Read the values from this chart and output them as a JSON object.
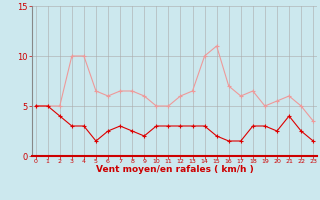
{
  "hours": [
    0,
    1,
    2,
    3,
    4,
    5,
    6,
    7,
    8,
    9,
    10,
    11,
    12,
    13,
    14,
    15,
    16,
    17,
    18,
    19,
    20,
    21,
    22,
    23
  ],
  "wind_avg": [
    5,
    5,
    4,
    3,
    3,
    1.5,
    2.5,
    3,
    2.5,
    2,
    3,
    3,
    3,
    3,
    3,
    2,
    1.5,
    1.5,
    3,
    3,
    2.5,
    4,
    2.5,
    1.5
  ],
  "wind_gust": [
    5,
    5,
    5,
    10,
    10,
    6.5,
    6,
    6.5,
    6.5,
    6,
    5,
    5,
    6,
    6.5,
    10,
    11,
    7,
    6,
    6.5,
    5,
    5.5,
    6,
    5,
    3.5
  ],
  "bg_color": "#cce8ee",
  "grid_color": "#aaaaaa",
  "line_avg_color": "#dd0000",
  "line_gust_color": "#ee9999",
  "xlabel": "Vent moyen/en rafales ( km/h )",
  "xlabel_color": "#cc0000",
  "tick_color": "#cc0000",
  "ylim": [
    0,
    15
  ],
  "yticks": [
    0,
    5,
    10,
    15
  ],
  "bottom_line_color": "#cc0000"
}
